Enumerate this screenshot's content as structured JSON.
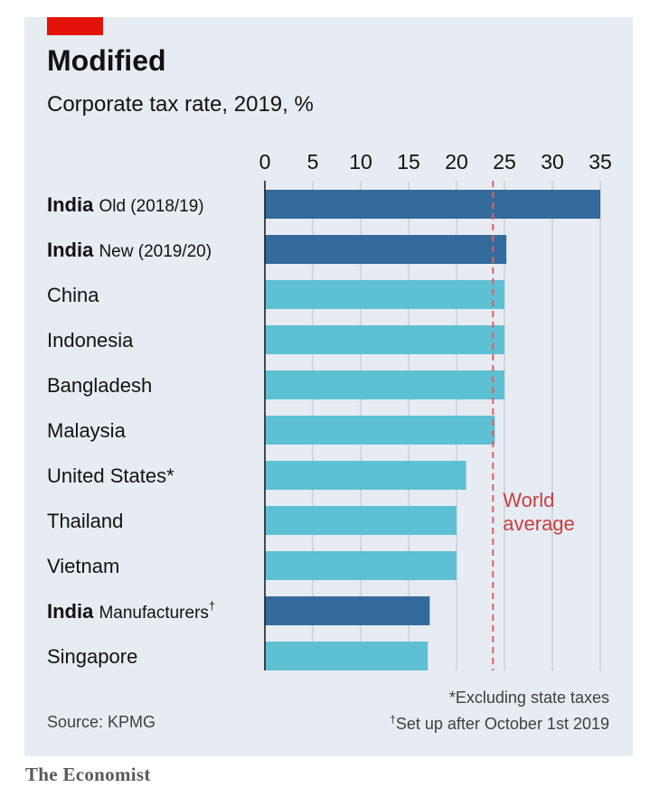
{
  "header": {
    "title": "Modified",
    "subtitle": "Corporate tax rate, 2019, %"
  },
  "chart_data": {
    "type": "bar",
    "orientation": "horizontal",
    "xlim": [
      0,
      35
    ],
    "ticks": [
      0,
      5,
      10,
      15,
      20,
      25,
      30,
      35
    ],
    "grid": true,
    "categories": [
      {
        "bold": "India",
        "label": "Old (2018/19)",
        "sup": "",
        "value": 35,
        "highlight": true
      },
      {
        "bold": "India",
        "label": "New (2019/20)",
        "sup": "",
        "value": 25.2,
        "highlight": true
      },
      {
        "bold": "",
        "label": "China",
        "sup": "",
        "value": 25,
        "highlight": false
      },
      {
        "bold": "",
        "label": "Indonesia",
        "sup": "",
        "value": 25,
        "highlight": false
      },
      {
        "bold": "",
        "label": "Bangladesh",
        "sup": "",
        "value": 25,
        "highlight": false
      },
      {
        "bold": "",
        "label": "Malaysia",
        "sup": "",
        "value": 24,
        "highlight": false
      },
      {
        "bold": "",
        "label": "United States*",
        "sup": "",
        "value": 21,
        "highlight": false
      },
      {
        "bold": "",
        "label": "Thailand",
        "sup": "",
        "value": 20,
        "highlight": false
      },
      {
        "bold": "",
        "label": "Vietnam",
        "sup": "",
        "value": 20,
        "highlight": false
      },
      {
        "bold": "India",
        "label": "Manufacturers",
        "sup": "†",
        "value": 17.2,
        "highlight": true
      },
      {
        "bold": "",
        "label": "Singapore",
        "sup": "",
        "value": 17,
        "highlight": false
      }
    ],
    "reference_line": {
      "value": 23.8,
      "label_lines": [
        "World",
        "average"
      ]
    },
    "colors": {
      "highlight": "#336b9c",
      "default": "#5ec0d3",
      "reference": "#d9635f",
      "grid": "#b9c3ce",
      "axis": "#121212"
    }
  },
  "footer": {
    "source": "Source: KPMG",
    "note1": "*Excluding state taxes",
    "note2_mark": "†",
    "note2": "Set up after October 1st 2019"
  },
  "brand": "The Economist",
  "colors": {
    "panel": "#e6ecf2",
    "accent_red": "#e3120b"
  }
}
